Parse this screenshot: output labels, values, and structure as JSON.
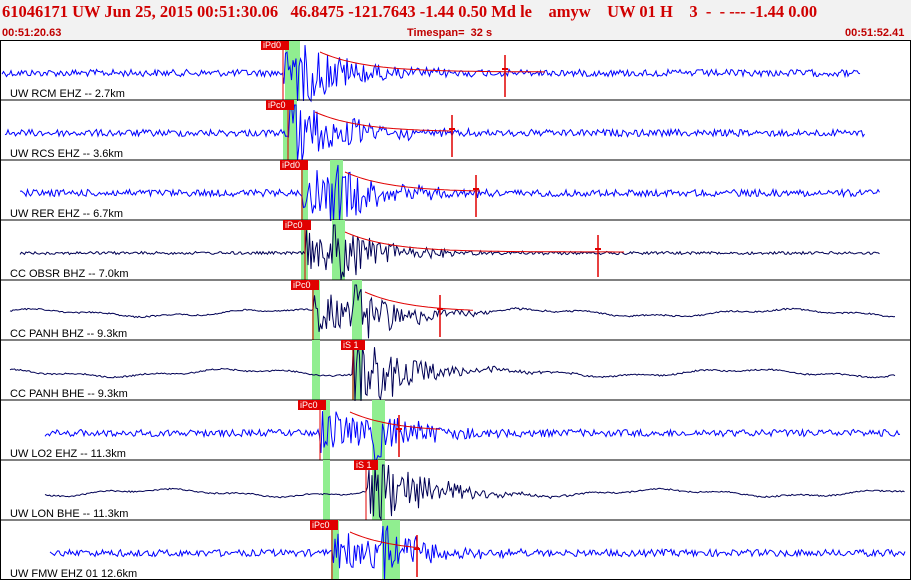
{
  "header": {
    "title": "61046171 UW Jun 25, 2015 00:51:30.06   46.8475 -121.7643 -1.44 0.50 Md le    amyw    UW 01 H    3  -  - --- -1.44 0.00",
    "start_time": "00:51:20.63",
    "timespan": "Timespan=  32 s",
    "end_time": "00:51:52.41"
  },
  "colors": {
    "header_text": "#c00000",
    "trace_blue": "#0000ff",
    "trace_navy": "#000055",
    "pick": "#e00000",
    "window": "#90ee90"
  },
  "panels": [
    {
      "label": "UW RCM EHZ -- 2.7km",
      "pick": "iPd0",
      "pick2": "",
      "coda": "red",
      "color": "blue",
      "style": "ehz"
    },
    {
      "label": "UW RCS EHZ -- 3.6km",
      "pick": "iPc0",
      "pick2": "",
      "coda": "red",
      "color": "blue",
      "style": "ehz"
    },
    {
      "label": "UW RER EHZ -- 6.7km",
      "pick": "iPd0",
      "pick2": "",
      "coda": "red",
      "color": "blue",
      "style": "ehz"
    },
    {
      "label": "CC OBSR BHZ -- 7.0km",
      "pick": "iPc0",
      "pick2": "",
      "coda": "red",
      "color": "navy",
      "style": "ehz"
    },
    {
      "label": "CC PANH BHZ -- 9.3km",
      "pick": "iPc0",
      "pick2": "",
      "coda": "red",
      "color": "navy",
      "style": "bh"
    },
    {
      "label": "CC PANH BHE -- 9.3km",
      "pick": "",
      "pick2": "iS 1",
      "coda": "",
      "color": "navy",
      "style": "bh"
    },
    {
      "label": "UW LO2 EHZ -- 11.3km",
      "pick": "iPc0",
      "pick2": "",
      "coda": "red",
      "color": "blue",
      "style": "ehz"
    },
    {
      "label": "UW LON BHE -- 11.3km",
      "pick": "",
      "pick2": "iS 1",
      "coda": "",
      "color": "navy",
      "style": "bh"
    },
    {
      "label": "UW FMW EHZ 01 12.6km",
      "pick": "iPc0",
      "pick2": "",
      "coda": "red",
      "color": "blue",
      "style": "ehz"
    }
  ]
}
